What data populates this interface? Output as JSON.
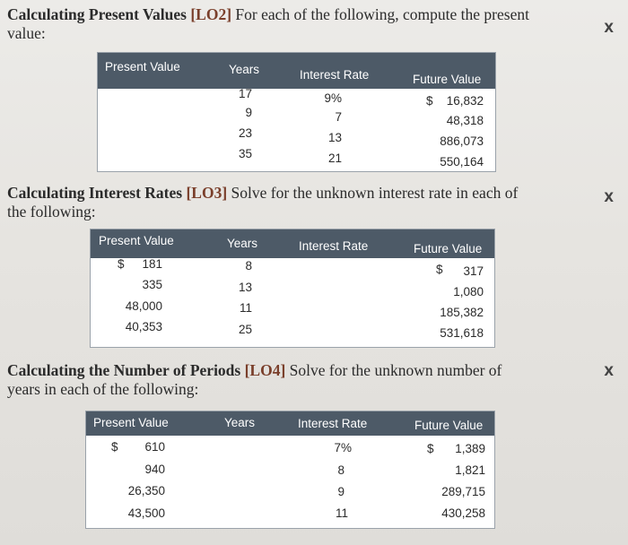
{
  "sections": [
    {
      "title_bold": "Calculating Present Values",
      "lo": "[LO2]",
      "text_line1": "For each of the following, compute the present",
      "text_line2": "value:",
      "headers": [
        "Present Value",
        "Years",
        "Interest Rate",
        "Future Value"
      ],
      "rows": [
        {
          "pv": "",
          "years": "17",
          "rate": "9%",
          "fv_cur": "$",
          "fv": "16,832"
        },
        {
          "pv": "",
          "years": "9",
          "rate": "7",
          "fv_cur": "",
          "fv": "48,318"
        },
        {
          "pv": "",
          "years": "23",
          "rate": "13",
          "fv_cur": "",
          "fv": "886,073"
        },
        {
          "pv": "",
          "years": "35",
          "rate": "21",
          "fv_cur": "",
          "fv": "550,164"
        }
      ]
    },
    {
      "title_bold": "Calculating Interest Rates",
      "lo": "[LO3]",
      "text_line1": "Solve for the unknown interest rate in each of",
      "text_line2": "the following:",
      "headers": [
        "Present Value",
        "Years",
        "Interest Rate",
        "Future Value"
      ],
      "rows": [
        {
          "pv_cur": "$",
          "pv": "181",
          "years": "8",
          "rate": "",
          "fv_cur": "$",
          "fv": "317"
        },
        {
          "pv_cur": "",
          "pv": "335",
          "years": "13",
          "rate": "",
          "fv_cur": "",
          "fv": "1,080"
        },
        {
          "pv_cur": "",
          "pv": "48,000",
          "years": "11",
          "rate": "",
          "fv_cur": "",
          "fv": "185,382"
        },
        {
          "pv_cur": "",
          "pv": "40,353",
          "years": "25",
          "rate": "",
          "fv_cur": "",
          "fv": "531,618"
        }
      ]
    },
    {
      "title_bold": "Calculating the Number of Periods",
      "lo": "[LO4]",
      "text_line1": "Solve for the unknown number of",
      "text_line2": "years in each of the following:",
      "headers": [
        "Present Value",
        "Years",
        "Interest Rate",
        "Future Value"
      ],
      "rows": [
        {
          "pv_cur": "$",
          "pv": "610",
          "years": "",
          "rate": "7%",
          "fv_cur": "$",
          "fv": "1,389"
        },
        {
          "pv_cur": "",
          "pv": "940",
          "years": "",
          "rate": "8",
          "fv_cur": "",
          "fv": "1,821"
        },
        {
          "pv_cur": "",
          "pv": "26,350",
          "years": "",
          "rate": "9",
          "fv_cur": "",
          "fv": "289,715"
        },
        {
          "pv_cur": "",
          "pv": "43,500",
          "years": "",
          "rate": "11",
          "fv_cur": "",
          "fv": "430,258"
        }
      ]
    }
  ],
  "margin_mark": "X",
  "colors": {
    "header_bg": "#4d5a67",
    "lo_color": "#7a3f2b",
    "page_bg": "#e9e7e3"
  }
}
